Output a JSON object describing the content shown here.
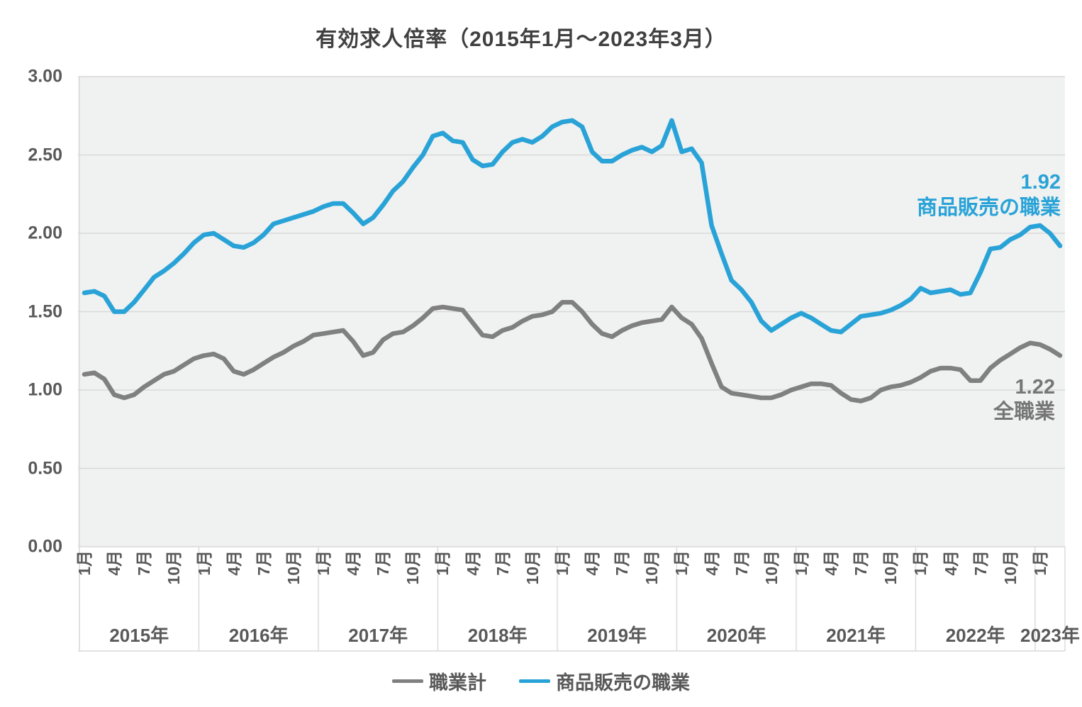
{
  "title": "有効求人倍率（2015年1月～2023年3月）",
  "annotations": {
    "sales_value": "1.92",
    "sales_label": "商品販売の職業",
    "total_value": "1.22",
    "total_label": "全職業"
  },
  "legend": {
    "items": [
      {
        "label": "職業計",
        "color": "#808080"
      },
      {
        "label": "商品販売の職業",
        "color": "#29a3d7"
      }
    ]
  },
  "colors": {
    "plot_bg": "#f0f1f1",
    "gridline": "#d9d9d9",
    "axis_text": "#595959",
    "title_text": "#404040",
    "total_line": "#808080",
    "sales_line": "#29a3d7"
  },
  "chart_data": {
    "type": "line",
    "title": "有効求人倍率（2015年1月～2023年3月）",
    "x_start": "2015-01",
    "x_end": "2023-03",
    "ylim": [
      0.0,
      3.0
    ],
    "yticks": [
      "0.00",
      "0.50",
      "1.00",
      "1.50",
      "2.00",
      "2.50",
      "3.00"
    ],
    "month_tick_labels": [
      "1月",
      "4月",
      "7月",
      "10月"
    ],
    "last_year_month_tick_labels": [
      "1月"
    ],
    "year_labels": [
      "2015年",
      "2016年",
      "2017年",
      "2018年",
      "2019年",
      "2020年",
      "2021年",
      "2022年",
      "2023年"
    ],
    "grid": true,
    "legend_position": "bottom",
    "series": [
      {
        "name": "職業計",
        "color": "#808080",
        "end_value": 1.22,
        "values": [
          1.1,
          1.11,
          1.07,
          0.97,
          0.95,
          0.97,
          1.02,
          1.06,
          1.1,
          1.12,
          1.16,
          1.2,
          1.22,
          1.23,
          1.2,
          1.12,
          1.1,
          1.13,
          1.17,
          1.21,
          1.24,
          1.28,
          1.31,
          1.35,
          1.36,
          1.37,
          1.38,
          1.31,
          1.22,
          1.24,
          1.32,
          1.36,
          1.37,
          1.41,
          1.46,
          1.52,
          1.53,
          1.52,
          1.51,
          1.43,
          1.35,
          1.34,
          1.38,
          1.4,
          1.44,
          1.47,
          1.48,
          1.5,
          1.56,
          1.56,
          1.5,
          1.42,
          1.36,
          1.34,
          1.38,
          1.41,
          1.43,
          1.44,
          1.45,
          1.53,
          1.46,
          1.42,
          1.33,
          1.17,
          1.02,
          0.98,
          0.97,
          0.96,
          0.95,
          0.95,
          0.97,
          1.0,
          1.02,
          1.04,
          1.04,
          1.03,
          0.98,
          0.94,
          0.93,
          0.95,
          1.0,
          1.02,
          1.03,
          1.05,
          1.08,
          1.12,
          1.14,
          1.14,
          1.13,
          1.06,
          1.06,
          1.14,
          1.19,
          1.23,
          1.27,
          1.3,
          1.29,
          1.26,
          1.22
        ]
      },
      {
        "name": "商品販売の職業",
        "color": "#29a3d7",
        "end_value": 1.92,
        "values": [
          1.62,
          1.63,
          1.6,
          1.5,
          1.5,
          1.56,
          1.64,
          1.72,
          1.76,
          1.81,
          1.87,
          1.94,
          1.99,
          2.0,
          1.96,
          1.92,
          1.91,
          1.94,
          1.99,
          2.06,
          2.08,
          2.1,
          2.12,
          2.14,
          2.17,
          2.19,
          2.19,
          2.13,
          2.06,
          2.1,
          2.18,
          2.27,
          2.33,
          2.42,
          2.5,
          2.62,
          2.64,
          2.59,
          2.58,
          2.47,
          2.43,
          2.44,
          2.52,
          2.58,
          2.6,
          2.58,
          2.62,
          2.68,
          2.71,
          2.72,
          2.68,
          2.52,
          2.46,
          2.46,
          2.5,
          2.53,
          2.55,
          2.52,
          2.56,
          2.72,
          2.52,
          2.54,
          2.45,
          2.05,
          1.87,
          1.7,
          1.64,
          1.56,
          1.44,
          1.38,
          1.42,
          1.46,
          1.49,
          1.46,
          1.42,
          1.38,
          1.37,
          1.42,
          1.47,
          1.48,
          1.49,
          1.51,
          1.54,
          1.58,
          1.65,
          1.62,
          1.63,
          1.64,
          1.61,
          1.62,
          1.75,
          1.9,
          1.91,
          1.96,
          1.99,
          2.04,
          2.05,
          2.0,
          1.92
        ]
      }
    ]
  }
}
